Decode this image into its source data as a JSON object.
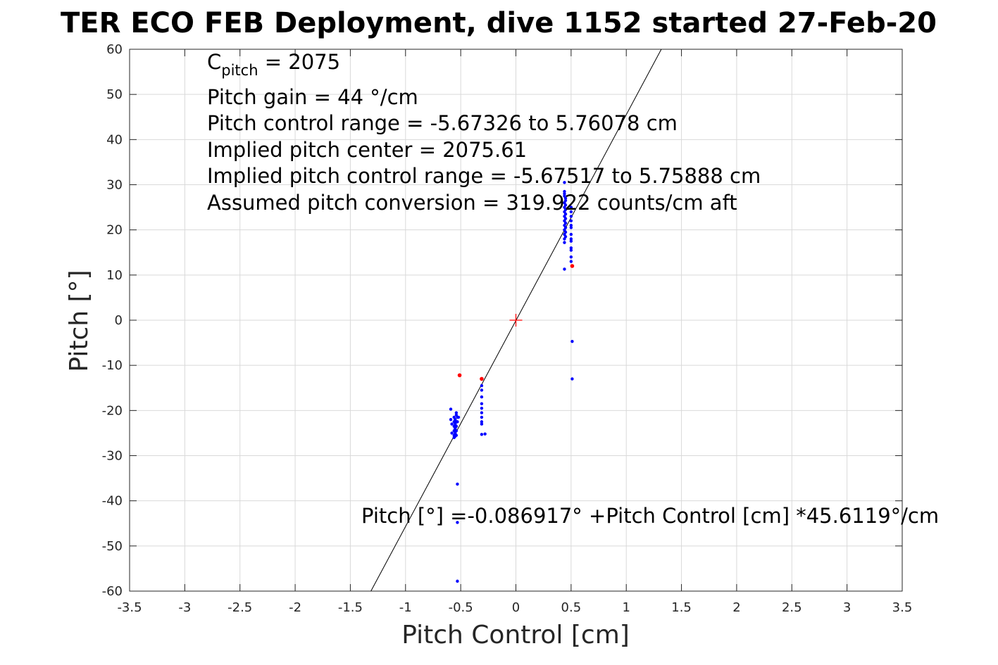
{
  "chart_data": {
    "type": "scatter",
    "title": "TER ECO FEB Deployment, dive 1152 started 27-Feb-20",
    "xlabel": "Pitch Control [cm]",
    "ylabel": "Pitch [°]",
    "xlim": [
      -3.5,
      3.5
    ],
    "ylim": [
      -60,
      60
    ],
    "xticks": [
      -3.5,
      -3,
      -2.5,
      -2,
      -1.5,
      -1,
      -0.5,
      0,
      0.5,
      1,
      1.5,
      2,
      2.5,
      3,
      3.5
    ],
    "xtick_labels": [
      "-3.5",
      "-3",
      "-2.5",
      "-2",
      "-1.5",
      "-1",
      "-0.5",
      "0",
      "0.5",
      "1",
      "1.5",
      "2",
      "2.5",
      "3",
      "3.5"
    ],
    "yticks": [
      -60,
      -50,
      -40,
      -30,
      -20,
      -10,
      0,
      10,
      20,
      30,
      40,
      50,
      60
    ],
    "ytick_labels": [
      "-60",
      "-50",
      "-40",
      "-30",
      "-20",
      "-10",
      "0",
      "10",
      "20",
      "30",
      "40",
      "50",
      "60"
    ],
    "grid": true,
    "colors": {
      "data": "#0000ff",
      "flagged": "#ff0000",
      "fit": "#000000",
      "center": "#ff0000",
      "grid": "#d9d9d9",
      "axes": "#262626"
    },
    "series": [
      {
        "marker": "dot",
        "color": "#0000ff",
        "points": [
          [
            0.44,
            30.5
          ],
          [
            0.44,
            28.5
          ],
          [
            0.44,
            28.0
          ],
          [
            0.44,
            27.5
          ],
          [
            0.45,
            27.0
          ],
          [
            0.45,
            26.5
          ],
          [
            0.44,
            26.0
          ],
          [
            0.45,
            25.5
          ],
          [
            0.44,
            25.0
          ],
          [
            0.45,
            24.5
          ],
          [
            0.44,
            24.0
          ],
          [
            0.45,
            23.5
          ],
          [
            0.44,
            23.0
          ],
          [
            0.45,
            22.5
          ],
          [
            0.44,
            22.0
          ],
          [
            0.45,
            21.5
          ],
          [
            0.44,
            21.0
          ],
          [
            0.45,
            20.5
          ],
          [
            0.44,
            20.0
          ],
          [
            0.45,
            19.5
          ],
          [
            0.44,
            19.0
          ],
          [
            0.45,
            18.5
          ],
          [
            0.44,
            18.0
          ],
          [
            0.44,
            17.2
          ],
          [
            0.44,
            11.3
          ],
          [
            0.5,
            25.0
          ],
          [
            0.5,
            24.0
          ],
          [
            0.5,
            23.0
          ],
          [
            0.5,
            22.0
          ],
          [
            0.5,
            21.0
          ],
          [
            0.5,
            20.5
          ],
          [
            0.5,
            19.0
          ],
          [
            0.5,
            18.0
          ],
          [
            0.5,
            17.5
          ],
          [
            0.5,
            16.0
          ],
          [
            0.5,
            15.5
          ],
          [
            0.5,
            14.0
          ],
          [
            0.5,
            13.0
          ],
          [
            0.51,
            -4.7
          ],
          [
            0.51,
            -13.0
          ],
          [
            -0.31,
            -13.0
          ],
          [
            -0.31,
            -14.5
          ],
          [
            -0.31,
            -15.5
          ],
          [
            -0.31,
            -17.0
          ],
          [
            -0.31,
            -18.5
          ],
          [
            -0.31,
            -19.5
          ],
          [
            -0.31,
            -20.5
          ],
          [
            -0.31,
            -21.5
          ],
          [
            -0.31,
            -22.5
          ],
          [
            -0.31,
            -23.0
          ],
          [
            -0.31,
            -25.3
          ],
          [
            -0.28,
            -25.2
          ],
          [
            -0.59,
            -19.7
          ],
          [
            -0.59,
            -22.0
          ],
          [
            -0.58,
            -23.0
          ],
          [
            -0.58,
            -25.0
          ],
          [
            -0.56,
            -21.5
          ],
          [
            -0.56,
            -22.5
          ],
          [
            -0.56,
            -23.5
          ],
          [
            -0.56,
            -24.5
          ],
          [
            -0.56,
            -25.5
          ],
          [
            -0.56,
            -26.0
          ],
          [
            -0.55,
            -22.0
          ],
          [
            -0.55,
            -23.0
          ],
          [
            -0.55,
            -24.0
          ],
          [
            -0.55,
            -25.0
          ],
          [
            -0.55,
            -25.7
          ],
          [
            -0.54,
            -20.5
          ],
          [
            -0.54,
            -21.0
          ],
          [
            -0.54,
            -22.5
          ],
          [
            -0.54,
            -23.5
          ],
          [
            -0.54,
            -24.5
          ],
          [
            -0.54,
            -25.5
          ],
          [
            -0.53,
            -21.5
          ],
          [
            -0.53,
            -22.5
          ],
          [
            -0.52,
            -21.5
          ],
          [
            -0.53,
            -36.3
          ],
          [
            -0.53,
            -44.8
          ],
          [
            -0.53,
            -57.8
          ]
        ]
      },
      {
        "marker": "dot",
        "color": "#ff0000",
        "points": [
          [
            0.51,
            12.0
          ],
          [
            -0.51,
            -12.2
          ],
          [
            -0.31,
            -13.0
          ]
        ]
      }
    ],
    "fit_line": {
      "intercept": -0.086917,
      "slope": 45.6119,
      "color": "#000000"
    },
    "center_marker": {
      "x": 0,
      "y": 0,
      "color": "#ff0000",
      "marker": "+"
    },
    "annotations": {
      "c_pitch_main": "C",
      "c_pitch_sub": "pitch",
      "c_pitch_value": " = 2075",
      "lines": [
        "Pitch gain = 44 °/cm",
        "Pitch control range = -5.67326 to 5.76078 cm",
        "Implied pitch center = 2075.61",
        "Implied pitch control range = -5.67517 to 5.75888 cm",
        "Assumed pitch conversion = 319.922 counts/cm aft"
      ],
      "fit_equation": "Pitch [°] =-0.086917° +Pitch Control [cm] *45.6119°/cm"
    }
  }
}
